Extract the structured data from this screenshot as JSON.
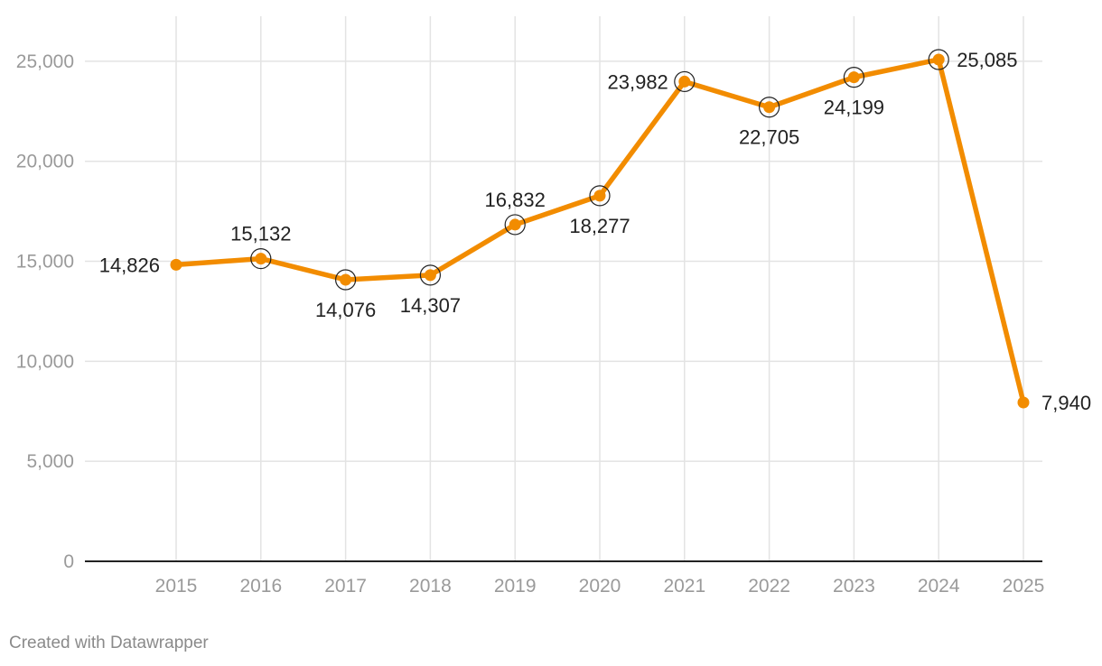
{
  "chart_data": {
    "type": "line",
    "title": "",
    "xlabel": "",
    "ylabel": "",
    "x": [
      "2015",
      "2016",
      "2017",
      "2018",
      "2019",
      "2020",
      "2021",
      "2022",
      "2023",
      "2024",
      "2025"
    ],
    "series": [
      {
        "name": "Value",
        "values": [
          14826,
          15132,
          14076,
          14307,
          16832,
          18277,
          23982,
          22705,
          24199,
          25085,
          7940
        ]
      }
    ],
    "data_labels": [
      "14,826",
      "15,132",
      "14,076",
      "14,307",
      "16,832",
      "18,277",
      "23,982",
      "22,705",
      "24,199",
      "25,085",
      "7,940"
    ],
    "y_ticks": [
      0,
      5000,
      10000,
      15000,
      20000,
      25000
    ],
    "y_tick_labels": [
      "0",
      "5,000",
      "10,000",
      "15,000",
      "20,000",
      "25,000"
    ],
    "ylim": [
      0,
      25000
    ],
    "grid": true,
    "legend": "none",
    "line_color": "#f28c00"
  },
  "footer": {
    "credit": "Created with Datawrapper"
  }
}
